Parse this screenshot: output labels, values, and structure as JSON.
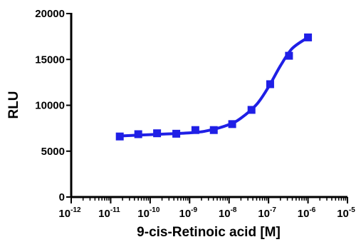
{
  "chart_data": {
    "type": "scatter",
    "xlabel": "9-cis-Retinoic acid [M]",
    "ylabel": "RLU",
    "xscale": "log",
    "xlim": [
      1e-12,
      1e-05
    ],
    "ylim": [
      0,
      20000
    ],
    "y_ticks": [
      "0",
      "5000",
      "10000",
      "15000",
      "20000"
    ],
    "x_ticks": [
      {
        "base": "10",
        "exp": "-12"
      },
      {
        "base": "10",
        "exp": "-11"
      },
      {
        "base": "10",
        "exp": "-10"
      },
      {
        "base": "10",
        "exp": "-9"
      },
      {
        "base": "10",
        "exp": "-8"
      },
      {
        "base": "10",
        "exp": "-7"
      },
      {
        "base": "10",
        "exp": "-6"
      },
      {
        "base": "10",
        "exp": "-5"
      }
    ],
    "grid": false,
    "color": "#1f1fe6",
    "marker": "square",
    "series": [
      {
        "x": [
          1.7e-11,
          5e-11,
          1.5e-10,
          4.6e-10,
          1.4e-09,
          4.1e-09,
          1.2e-08,
          3.7e-08,
          1.1e-07,
          3.3e-07,
          1e-06
        ],
        "values": [
          6600,
          6850,
          6950,
          6900,
          7300,
          7300,
          7950,
          9500,
          12300,
          15400,
          17400
        ]
      }
    ],
    "fit_curve": {
      "x": [
        1.7e-11,
        1e-10,
        1e-09,
        3e-09,
        1e-08,
        2e-08,
        5e-08,
        1e-07,
        2e-07,
        4e-07,
        1e-06
      ],
      "values": [
        6650,
        6800,
        7000,
        7250,
        7900,
        8600,
        10100,
        12000,
        14300,
        16200,
        17400
      ]
    }
  }
}
